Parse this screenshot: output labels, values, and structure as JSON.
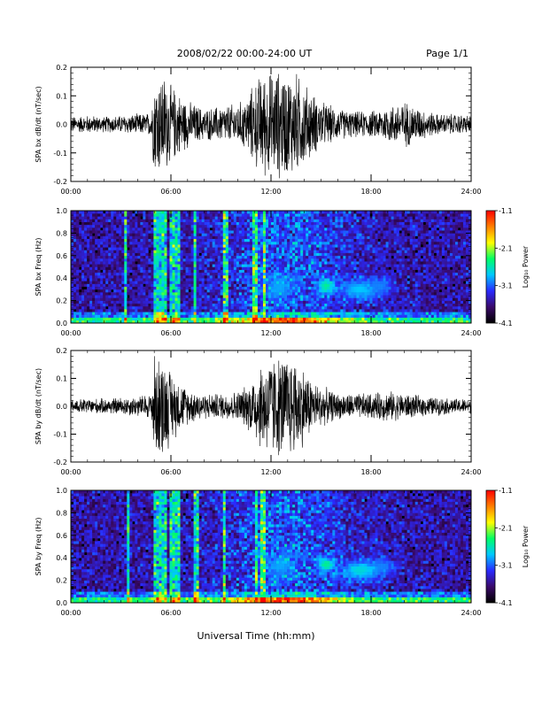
{
  "header": {
    "title": "2008/02/22  00:00-24:00 UT",
    "page_label": "Page 1/1"
  },
  "footer": {
    "xlabel": "Universal Time (hh:mm)"
  },
  "colors": {
    "trace": "#000000",
    "colorbar_stops": [
      "#000000",
      "#3a0a6a",
      "#2a2aff",
      "#00c8ff",
      "#00ff66",
      "#ffff00",
      "#ff8000",
      "#ff0000"
    ]
  },
  "chart_data": [
    {
      "type": "line",
      "ylabel": "SPA bx dB/dt (nT/sec)",
      "xlim": [
        0,
        24
      ],
      "ylim": [
        -0.2,
        0.2
      ],
      "x_ticks": [
        "00:00",
        "06:00",
        "12:00",
        "18:00",
        "24:00"
      ],
      "y_ticks": [
        "-0.2",
        "-0.1",
        "0.0",
        "0.1",
        "0.2"
      ],
      "amplitude_envelope": {
        "hours": [
          0,
          1,
          2,
          3,
          4,
          4.8,
          5.0,
          5.5,
          6.0,
          6.5,
          7,
          8,
          9,
          10,
          10.5,
          11,
          11.5,
          12,
          12.5,
          13,
          13.5,
          14,
          14.5,
          15,
          16,
          17,
          18,
          19,
          20,
          21,
          22,
          23,
          24
        ],
        "amp": [
          0.03,
          0.035,
          0.03,
          0.035,
          0.04,
          0.045,
          0.19,
          0.2,
          0.15,
          0.12,
          0.09,
          0.06,
          0.07,
          0.08,
          0.1,
          0.16,
          0.2,
          0.2,
          0.21,
          0.2,
          0.2,
          0.16,
          0.12,
          0.09,
          0.06,
          0.05,
          0.05,
          0.07,
          0.09,
          0.06,
          0.04,
          0.04,
          0.035
        ]
      }
    },
    {
      "type": "heatmap",
      "ylabel": "SPA bx Freq (Hz)",
      "xlim": [
        0,
        24
      ],
      "ylim": [
        0,
        1
      ],
      "x_ticks": [
        "00:00",
        "06:00",
        "12:00",
        "18:00",
        "24:00"
      ],
      "y_ticks": [
        "0.0",
        "0.2",
        "0.4",
        "0.6",
        "0.8",
        "1.0"
      ],
      "colorbar": {
        "label": "Log₁₀ Power",
        "range": [
          -4.1,
          -1.1
        ],
        "ticks": [
          "-1.1",
          "-2.1",
          "-3.1",
          "-4.1"
        ]
      },
      "features": {
        "vertical_lines_hours": [
          3.3,
          5.0,
          5.3,
          5.6,
          6.1,
          6.4,
          7.4,
          9.3,
          11.0,
          11.6
        ],
        "blobs": [
          {
            "t": 12.5,
            "f": 0.32,
            "dt": 1.0,
            "df": 0.12,
            "level": -2.9
          },
          {
            "t": 15.3,
            "f": 0.33,
            "dt": 0.5,
            "df": 0.07,
            "level": -2.5
          },
          {
            "t": 17.3,
            "f": 0.3,
            "dt": 1.3,
            "df": 0.09,
            "level": -2.8
          },
          {
            "t": 18.5,
            "f": 0.33,
            "dt": 0.8,
            "df": 0.08,
            "level": -3.0
          }
        ]
      }
    },
    {
      "type": "line",
      "ylabel": "SPA by dB/dt (nT/sec)",
      "xlim": [
        0,
        24
      ],
      "ylim": [
        -0.2,
        0.2
      ],
      "x_ticks": [
        "00:00",
        "06:00",
        "12:00",
        "18:00",
        "24:00"
      ],
      "y_ticks": [
        "-0.2",
        "-0.1",
        "0.0",
        "0.1",
        "0.2"
      ],
      "amplitude_envelope": {
        "hours": [
          0,
          1,
          2,
          3,
          4,
          4.8,
          5.0,
          5.5,
          6.0,
          6.5,
          7,
          8,
          9,
          10,
          10.5,
          11,
          11.5,
          12,
          12.5,
          13,
          13.5,
          14,
          14.5,
          15,
          16,
          17,
          18,
          19,
          20,
          21,
          22,
          23,
          24
        ],
        "amp": [
          0.025,
          0.03,
          0.03,
          0.035,
          0.04,
          0.05,
          0.2,
          0.2,
          0.14,
          0.1,
          0.07,
          0.05,
          0.05,
          0.06,
          0.08,
          0.13,
          0.18,
          0.2,
          0.2,
          0.2,
          0.19,
          0.15,
          0.1,
          0.08,
          0.05,
          0.05,
          0.05,
          0.06,
          0.05,
          0.04,
          0.035,
          0.03,
          0.03
        ]
      }
    },
    {
      "type": "heatmap",
      "ylabel": "SPA by Freq (Hz)",
      "xlim": [
        0,
        24
      ],
      "ylim": [
        0,
        1
      ],
      "x_ticks": [
        "00:00",
        "06:00",
        "12:00",
        "18:00",
        "24:00"
      ],
      "y_ticks": [
        "0.0",
        "0.2",
        "0.4",
        "0.6",
        "0.8",
        "1.0"
      ],
      "colorbar": {
        "label": "Log₁₀ Power",
        "range": [
          -4.1,
          -1.1
        ],
        "ticks": [
          "-1.1",
          "-2.1",
          "-3.1",
          "-4.1"
        ]
      },
      "features": {
        "vertical_lines_hours": [
          3.4,
          5.0,
          5.3,
          5.6,
          6.1,
          6.4,
          7.5,
          9.2,
          11.1,
          11.5
        ],
        "blobs": [
          {
            "t": 12.6,
            "f": 0.33,
            "dt": 1.0,
            "df": 0.12,
            "level": -2.9
          },
          {
            "t": 15.3,
            "f": 0.34,
            "dt": 0.5,
            "df": 0.07,
            "level": -2.5
          },
          {
            "t": 17.4,
            "f": 0.29,
            "dt": 1.3,
            "df": 0.09,
            "level": -2.7
          },
          {
            "t": 18.6,
            "f": 0.32,
            "dt": 0.8,
            "df": 0.08,
            "level": -3.0
          }
        ]
      }
    }
  ]
}
